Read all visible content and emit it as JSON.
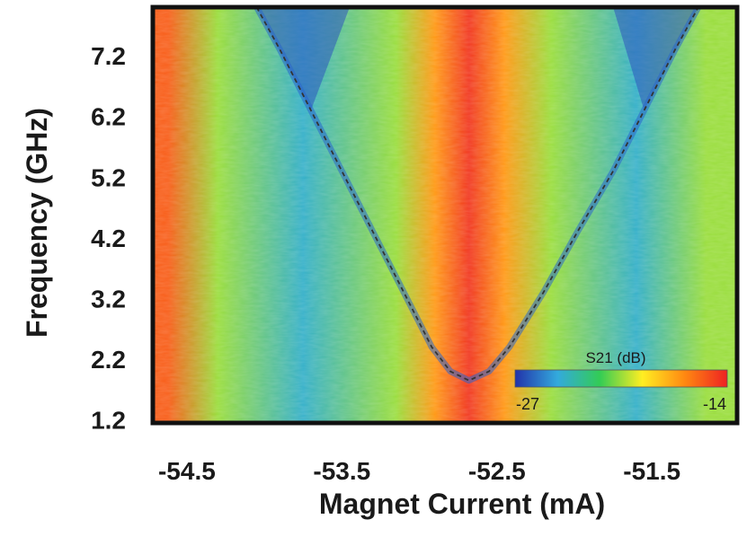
{
  "chart_data": {
    "type": "heatmap",
    "title": "",
    "xlabel": "Magnet Current (mA)",
    "ylabel": "Frequency (GHz)",
    "xlim": [
      -54.72,
      -50.95
    ],
    "ylim": [
      1.15,
      8.0
    ],
    "x_ticks": [
      -54.5,
      -53.5,
      -52.5,
      -51.5
    ],
    "x_tick_labels": [
      "-54.5",
      "-53.5",
      "-52.5",
      "-51.5"
    ],
    "y_ticks": [
      1.2,
      2.2,
      3.2,
      4.2,
      5.2,
      6.2,
      7.2
    ],
    "y_tick_labels": [
      "1.2",
      "2.2",
      "3.2",
      "4.2",
      "5.2",
      "6.2",
      "7.2"
    ],
    "grid": false,
    "colorbar": {
      "title": "S21 (dB)",
      "min": -27,
      "max": -14,
      "min_label": "-27",
      "max_label": "-14",
      "placement": "lower-right inside plot",
      "colors": [
        "#2233aa",
        "#33aadd",
        "#33cc55",
        "#ffee22",
        "#ff8811",
        "#ee2222"
      ]
    },
    "background_vertical_bands": [
      {
        "x": -54.62,
        "level": -15.5
      },
      {
        "x": -54.3,
        "level": -20.5
      },
      {
        "x": -53.75,
        "level": -24.0
      },
      {
        "x": -53.15,
        "level": -20.5
      },
      {
        "x": -52.9,
        "level": -17.0
      },
      {
        "x": -52.68,
        "level": -14.5
      },
      {
        "x": -52.45,
        "level": -17.0
      },
      {
        "x": -52.15,
        "level": -20.5
      },
      {
        "x": -51.6,
        "level": -24.0
      },
      {
        "x": -51.15,
        "level": -20.5
      }
    ],
    "resonance_curve": {
      "style": "dashed",
      "color": "#333333",
      "min_x": -52.68,
      "min_freq": 1.85,
      "points": [
        {
          "x": -54.05,
          "y": 8.0
        },
        {
          "x": -53.9,
          "y": 7.3
        },
        {
          "x": -53.7,
          "y": 6.3
        },
        {
          "x": -53.5,
          "y": 5.3
        },
        {
          "x": -53.3,
          "y": 4.3
        },
        {
          "x": -53.1,
          "y": 3.3
        },
        {
          "x": -52.92,
          "y": 2.4
        },
        {
          "x": -52.8,
          "y": 2.0
        },
        {
          "x": -52.68,
          "y": 1.85
        },
        {
          "x": -52.55,
          "y": 2.0
        },
        {
          "x": -52.42,
          "y": 2.4
        },
        {
          "x": -52.2,
          "y": 3.3
        },
        {
          "x": -51.98,
          "y": 4.3
        },
        {
          "x": -51.75,
          "y": 5.3
        },
        {
          "x": -51.55,
          "y": 6.3
        },
        {
          "x": -51.35,
          "y": 7.3
        },
        {
          "x": -51.2,
          "y": 8.0
        }
      ]
    }
  }
}
